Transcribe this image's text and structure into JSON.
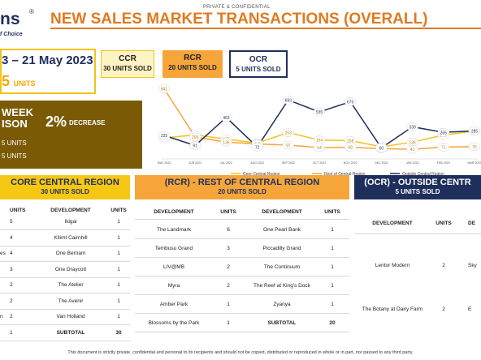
{
  "header": {
    "logo_text": "ns",
    "logo_reg": "®",
    "logo_sub": "f Choice",
    "confidential": "PRIVATE & CONFIDENTIAL",
    "title": "NEW SALES MARKET TRANSACTIONS (OVERALL)"
  },
  "period": {
    "date_range": "3 – 21 May 2023",
    "total_num": "5",
    "total_label": "UNITS"
  },
  "segments": {
    "ccr": {
      "label": "CCR",
      "count": "30",
      "units_label": "UNITS SOLD"
    },
    "rcr": {
      "label": "RCR",
      "count": "20",
      "units_label": "UNITS SOLD"
    },
    "ocr": {
      "label": "OCR",
      "count": "5",
      "units_label": "UNITS SOLD"
    }
  },
  "week_compare": {
    "label_line1": "WEEK",
    "label_line2": "ISON",
    "pct": "2%",
    "direction": "DECREASE",
    "line_a": "5 UNITS",
    "line_b": "5 UNITS"
  },
  "colors": {
    "ccr": "#f0c419",
    "rcr": "#f5a53a",
    "ocr": "#1f2f5c"
  },
  "chart_data": {
    "type": "line",
    "categories": [
      "MAY 2022",
      "JUN 2022",
      "JUL 2022",
      "AUG 2022",
      "SEP 2022",
      "OCT 2022",
      "NOV 2022",
      "DEC 2022",
      "JAN 2023",
      "FEB 2023",
      "MAR 2023"
    ],
    "series": [
      {
        "name": "Core Central Region",
        "values": [
          191,
          231,
          177,
          122,
          263,
          164,
          158,
          74,
          136,
          229,
          283
        ]
      },
      {
        "name": "Rest of Central Region",
        "values": [
          841,
          205,
          136,
          112,
          97,
          64,
          68,
          50,
          41,
          71,
          76
        ]
      },
      {
        "name": "Outside Central Region",
        "values": [
          225,
          91,
          463,
          72,
          693,
          535,
          670,
          60,
          339,
          265,
          285
        ]
      }
    ],
    "ylim": [
      0,
      900
    ],
    "grid": false,
    "legend": "bottom"
  },
  "ccr_table": {
    "title": "CORE CENTRAL REGION",
    "subtitle": "30 UNITS SOLD",
    "headers": [
      "UNITS",
      "DEVELOPMENT",
      "UNITS"
    ],
    "rows": [
      [
        "",
        "5",
        "Ikigai",
        "1"
      ],
      [
        "",
        "4",
        "Kllimt Cairnhill",
        "1"
      ],
      [
        "es",
        "4",
        "One Bernam",
        "1"
      ],
      [
        "",
        "3",
        "One Draycott",
        "1"
      ],
      [
        "",
        "2",
        "The Atelier",
        "1"
      ],
      [
        "",
        "2",
        "The Avenir",
        "1"
      ],
      [
        "n",
        "2",
        "Van Holland",
        "1"
      ],
      [
        "",
        "1",
        "SUBTOTAL",
        "30"
      ]
    ]
  },
  "rcr_table": {
    "title": "(RCR) - REST OF CENTRAL REGION",
    "subtitle": "20 UNITS SOLD",
    "headers": [
      "DEVELOPMENT",
      "UNITS",
      "DEVELOPMENT",
      "UNITS"
    ],
    "rows": [
      [
        "The Landmark",
        "6",
        "One Pearl Bank",
        "1"
      ],
      [
        "Tembusu Grand",
        "3",
        "Piccadilly Grand",
        "1"
      ],
      [
        "LIV@MB",
        "2",
        "The Continuum",
        "1"
      ],
      [
        "Myra",
        "2",
        "The Reef at King's Dock",
        "1"
      ],
      [
        "Amber Park",
        "1",
        "Zyanya",
        "1"
      ],
      [
        "Blossoms by the Park",
        "1",
        "SUBTOTAL",
        "20"
      ]
    ]
  },
  "ocr_table": {
    "title": "(OCR) - OUTSIDE CENTR",
    "subtitle": "5 UNITS SOLD",
    "headers": [
      "DEVELOPMENT",
      "UNITS",
      "DE"
    ],
    "rows": [
      [
        "Lentor Modern",
        "2",
        "Sky"
      ],
      [
        "The Botany at Dairy Farm",
        "2",
        "E"
      ]
    ]
  },
  "footer": "This document is strictly private, confidential and personal to its recipients and should not be copied, distributed or reproduced in whole or in part, nor passed to any third party."
}
